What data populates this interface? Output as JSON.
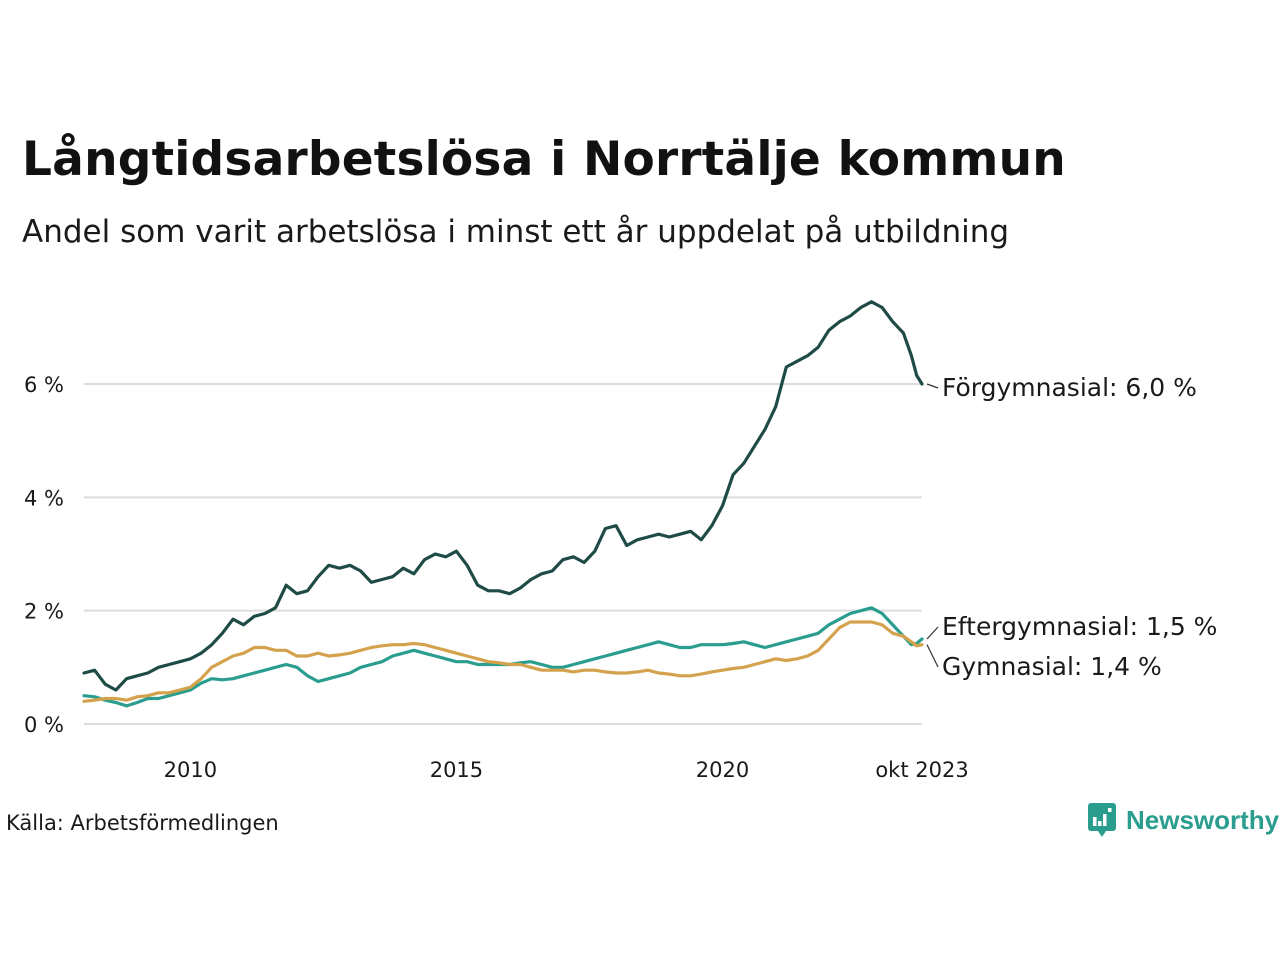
{
  "header": {
    "title": "Långtidsarbetslösa i Norrtälje kommun",
    "subtitle": "Andel som varit arbetslösa i minst ett år uppdelat på utbildning"
  },
  "footer": {
    "source": "Källa: Arbetsförmedlingen",
    "brand": "Newsworthy"
  },
  "chart_data": {
    "type": "line",
    "title": "Långtidsarbetslösa i Norrtälje kommun",
    "subtitle": "Andel som varit arbetslösa i minst ett år uppdelat på utbildning",
    "xlabel": "",
    "ylabel": "",
    "xlim": [
      2008.0,
      2023.75
    ],
    "ylim": [
      0,
      7.5
    ],
    "grid": true,
    "y_ticks": [
      {
        "value": 0,
        "label": "0 %"
      },
      {
        "value": 2,
        "label": "2 %"
      },
      {
        "value": 4,
        "label": "4 %"
      },
      {
        "value": 6,
        "label": "6 %"
      }
    ],
    "x_ticks": [
      {
        "value": 2010,
        "label": "2010"
      },
      {
        "value": 2015,
        "label": "2015"
      },
      {
        "value": 2020,
        "label": "2020"
      },
      {
        "value": 2023.75,
        "label": "okt 2023"
      }
    ],
    "series": [
      {
        "name": "Förgymnasial",
        "label": "Förgymnasial: 6,0 %",
        "color": "#1f4b47",
        "points": [
          [
            2008.0,
            0.9
          ],
          [
            2008.2,
            0.95
          ],
          [
            2008.4,
            0.7
          ],
          [
            2008.6,
            0.6
          ],
          [
            2008.8,
            0.8
          ],
          [
            2009.0,
            0.85
          ],
          [
            2009.2,
            0.9
          ],
          [
            2009.4,
            1.0
          ],
          [
            2009.6,
            1.05
          ],
          [
            2009.8,
            1.1
          ],
          [
            2010.0,
            1.15
          ],
          [
            2010.2,
            1.25
          ],
          [
            2010.4,
            1.4
          ],
          [
            2010.6,
            1.6
          ],
          [
            2010.8,
            1.85
          ],
          [
            2011.0,
            1.75
          ],
          [
            2011.2,
            1.9
          ],
          [
            2011.4,
            1.95
          ],
          [
            2011.6,
            2.05
          ],
          [
            2011.8,
            2.45
          ],
          [
            2012.0,
            2.3
          ],
          [
            2012.2,
            2.35
          ],
          [
            2012.4,
            2.6
          ],
          [
            2012.6,
            2.8
          ],
          [
            2012.8,
            2.75
          ],
          [
            2013.0,
            2.8
          ],
          [
            2013.2,
            2.7
          ],
          [
            2013.4,
            2.5
          ],
          [
            2013.6,
            2.55
          ],
          [
            2013.8,
            2.6
          ],
          [
            2014.0,
            2.75
          ],
          [
            2014.2,
            2.65
          ],
          [
            2014.4,
            2.9
          ],
          [
            2014.6,
            3.0
          ],
          [
            2014.8,
            2.95
          ],
          [
            2015.0,
            3.05
          ],
          [
            2015.2,
            2.8
          ],
          [
            2015.4,
            2.45
          ],
          [
            2015.6,
            2.35
          ],
          [
            2015.8,
            2.35
          ],
          [
            2016.0,
            2.3
          ],
          [
            2016.2,
            2.4
          ],
          [
            2016.4,
            2.55
          ],
          [
            2016.6,
            2.65
          ],
          [
            2016.8,
            2.7
          ],
          [
            2017.0,
            2.9
          ],
          [
            2017.2,
            2.95
          ],
          [
            2017.4,
            2.85
          ],
          [
            2017.6,
            3.05
          ],
          [
            2017.8,
            3.45
          ],
          [
            2018.0,
            3.5
          ],
          [
            2018.2,
            3.15
          ],
          [
            2018.4,
            3.25
          ],
          [
            2018.6,
            3.3
          ],
          [
            2018.8,
            3.35
          ],
          [
            2019.0,
            3.3
          ],
          [
            2019.2,
            3.35
          ],
          [
            2019.4,
            3.4
          ],
          [
            2019.6,
            3.25
          ],
          [
            2019.8,
            3.5
          ],
          [
            2020.0,
            3.85
          ],
          [
            2020.2,
            4.4
          ],
          [
            2020.4,
            4.6
          ],
          [
            2020.6,
            4.9
          ],
          [
            2020.8,
            5.2
          ],
          [
            2021.0,
            5.6
          ],
          [
            2021.2,
            6.3
          ],
          [
            2021.4,
            6.4
          ],
          [
            2021.6,
            6.5
          ],
          [
            2021.8,
            6.65
          ],
          [
            2022.0,
            6.95
          ],
          [
            2022.2,
            7.1
          ],
          [
            2022.4,
            7.2
          ],
          [
            2022.6,
            7.35
          ],
          [
            2022.8,
            7.45
          ],
          [
            2023.0,
            7.35
          ],
          [
            2023.2,
            7.1
          ],
          [
            2023.4,
            6.9
          ],
          [
            2023.55,
            6.5
          ],
          [
            2023.65,
            6.15
          ],
          [
            2023.75,
            6.0
          ]
        ]
      },
      {
        "name": "Eftergymnasial",
        "label": "Eftergymnasial: 1,5 %",
        "color": "#2a9d8f",
        "points": [
          [
            2008.0,
            0.5
          ],
          [
            2008.2,
            0.48
          ],
          [
            2008.4,
            0.42
          ],
          [
            2008.6,
            0.38
          ],
          [
            2008.8,
            0.32
          ],
          [
            2009.0,
            0.38
          ],
          [
            2009.2,
            0.45
          ],
          [
            2009.4,
            0.45
          ],
          [
            2009.6,
            0.5
          ],
          [
            2009.8,
            0.55
          ],
          [
            2010.0,
            0.6
          ],
          [
            2010.2,
            0.72
          ],
          [
            2010.4,
            0.8
          ],
          [
            2010.6,
            0.78
          ],
          [
            2010.8,
            0.8
          ],
          [
            2011.0,
            0.85
          ],
          [
            2011.2,
            0.9
          ],
          [
            2011.4,
            0.95
          ],
          [
            2011.6,
            1.0
          ],
          [
            2011.8,
            1.05
          ],
          [
            2012.0,
            1.0
          ],
          [
            2012.2,
            0.85
          ],
          [
            2012.4,
            0.75
          ],
          [
            2012.6,
            0.8
          ],
          [
            2012.8,
            0.85
          ],
          [
            2013.0,
            0.9
          ],
          [
            2013.2,
            1.0
          ],
          [
            2013.4,
            1.05
          ],
          [
            2013.6,
            1.1
          ],
          [
            2013.8,
            1.2
          ],
          [
            2014.0,
            1.25
          ],
          [
            2014.2,
            1.3
          ],
          [
            2014.4,
            1.25
          ],
          [
            2014.6,
            1.2
          ],
          [
            2014.8,
            1.15
          ],
          [
            2015.0,
            1.1
          ],
          [
            2015.2,
            1.1
          ],
          [
            2015.4,
            1.05
          ],
          [
            2015.6,
            1.05
          ],
          [
            2015.8,
            1.05
          ],
          [
            2016.0,
            1.05
          ],
          [
            2016.2,
            1.08
          ],
          [
            2016.4,
            1.1
          ],
          [
            2016.6,
            1.05
          ],
          [
            2016.8,
            1.0
          ],
          [
            2017.0,
            1.0
          ],
          [
            2017.2,
            1.05
          ],
          [
            2017.4,
            1.1
          ],
          [
            2017.6,
            1.15
          ],
          [
            2017.8,
            1.2
          ],
          [
            2018.0,
            1.25
          ],
          [
            2018.2,
            1.3
          ],
          [
            2018.4,
            1.35
          ],
          [
            2018.6,
            1.4
          ],
          [
            2018.8,
            1.45
          ],
          [
            2019.0,
            1.4
          ],
          [
            2019.2,
            1.35
          ],
          [
            2019.4,
            1.35
          ],
          [
            2019.6,
            1.4
          ],
          [
            2019.8,
            1.4
          ],
          [
            2020.0,
            1.4
          ],
          [
            2020.2,
            1.42
          ],
          [
            2020.4,
            1.45
          ],
          [
            2020.6,
            1.4
          ],
          [
            2020.8,
            1.35
          ],
          [
            2021.0,
            1.4
          ],
          [
            2021.2,
            1.45
          ],
          [
            2021.4,
            1.5
          ],
          [
            2021.6,
            1.55
          ],
          [
            2021.8,
            1.6
          ],
          [
            2022.0,
            1.75
          ],
          [
            2022.2,
            1.85
          ],
          [
            2022.4,
            1.95
          ],
          [
            2022.6,
            2.0
          ],
          [
            2022.8,
            2.05
          ],
          [
            2023.0,
            1.95
          ],
          [
            2023.2,
            1.75
          ],
          [
            2023.4,
            1.55
          ],
          [
            2023.55,
            1.4
          ],
          [
            2023.65,
            1.42
          ],
          [
            2023.75,
            1.5
          ]
        ]
      },
      {
        "name": "Gymnasial",
        "label": "Gymnasial: 1,4 %",
        "color": "#d4a24c",
        "points": [
          [
            2008.0,
            0.4
          ],
          [
            2008.2,
            0.42
          ],
          [
            2008.4,
            0.45
          ],
          [
            2008.6,
            0.45
          ],
          [
            2008.8,
            0.42
          ],
          [
            2009.0,
            0.48
          ],
          [
            2009.2,
            0.5
          ],
          [
            2009.4,
            0.55
          ],
          [
            2009.6,
            0.55
          ],
          [
            2009.8,
            0.6
          ],
          [
            2010.0,
            0.65
          ],
          [
            2010.2,
            0.8
          ],
          [
            2010.4,
            1.0
          ],
          [
            2010.6,
            1.1
          ],
          [
            2010.8,
            1.2
          ],
          [
            2011.0,
            1.25
          ],
          [
            2011.2,
            1.35
          ],
          [
            2011.4,
            1.35
          ],
          [
            2011.6,
            1.3
          ],
          [
            2011.8,
            1.3
          ],
          [
            2012.0,
            1.2
          ],
          [
            2012.2,
            1.2
          ],
          [
            2012.4,
            1.25
          ],
          [
            2012.6,
            1.2
          ],
          [
            2012.8,
            1.22
          ],
          [
            2013.0,
            1.25
          ],
          [
            2013.2,
            1.3
          ],
          [
            2013.4,
            1.35
          ],
          [
            2013.6,
            1.38
          ],
          [
            2013.8,
            1.4
          ],
          [
            2014.0,
            1.4
          ],
          [
            2014.2,
            1.42
          ],
          [
            2014.4,
            1.4
          ],
          [
            2014.6,
            1.35
          ],
          [
            2014.8,
            1.3
          ],
          [
            2015.0,
            1.25
          ],
          [
            2015.2,
            1.2
          ],
          [
            2015.4,
            1.15
          ],
          [
            2015.6,
            1.1
          ],
          [
            2015.8,
            1.08
          ],
          [
            2016.0,
            1.05
          ],
          [
            2016.2,
            1.05
          ],
          [
            2016.4,
            1.0
          ],
          [
            2016.6,
            0.95
          ],
          [
            2016.8,
            0.95
          ],
          [
            2017.0,
            0.95
          ],
          [
            2017.2,
            0.92
          ],
          [
            2017.4,
            0.95
          ],
          [
            2017.6,
            0.95
          ],
          [
            2017.8,
            0.92
          ],
          [
            2018.0,
            0.9
          ],
          [
            2018.2,
            0.9
          ],
          [
            2018.4,
            0.92
          ],
          [
            2018.6,
            0.95
          ],
          [
            2018.8,
            0.9
          ],
          [
            2019.0,
            0.88
          ],
          [
            2019.2,
            0.85
          ],
          [
            2019.4,
            0.85
          ],
          [
            2019.6,
            0.88
          ],
          [
            2019.8,
            0.92
          ],
          [
            2020.0,
            0.95
          ],
          [
            2020.2,
            0.98
          ],
          [
            2020.4,
            1.0
          ],
          [
            2020.6,
            1.05
          ],
          [
            2020.8,
            1.1
          ],
          [
            2021.0,
            1.15
          ],
          [
            2021.2,
            1.12
          ],
          [
            2021.4,
            1.15
          ],
          [
            2021.6,
            1.2
          ],
          [
            2021.8,
            1.3
          ],
          [
            2022.0,
            1.5
          ],
          [
            2022.2,
            1.7
          ],
          [
            2022.4,
            1.8
          ],
          [
            2022.6,
            1.8
          ],
          [
            2022.8,
            1.8
          ],
          [
            2023.0,
            1.75
          ],
          [
            2023.2,
            1.6
          ],
          [
            2023.4,
            1.55
          ],
          [
            2023.55,
            1.45
          ],
          [
            2023.65,
            1.38
          ],
          [
            2023.75,
            1.4
          ]
        ]
      }
    ]
  }
}
